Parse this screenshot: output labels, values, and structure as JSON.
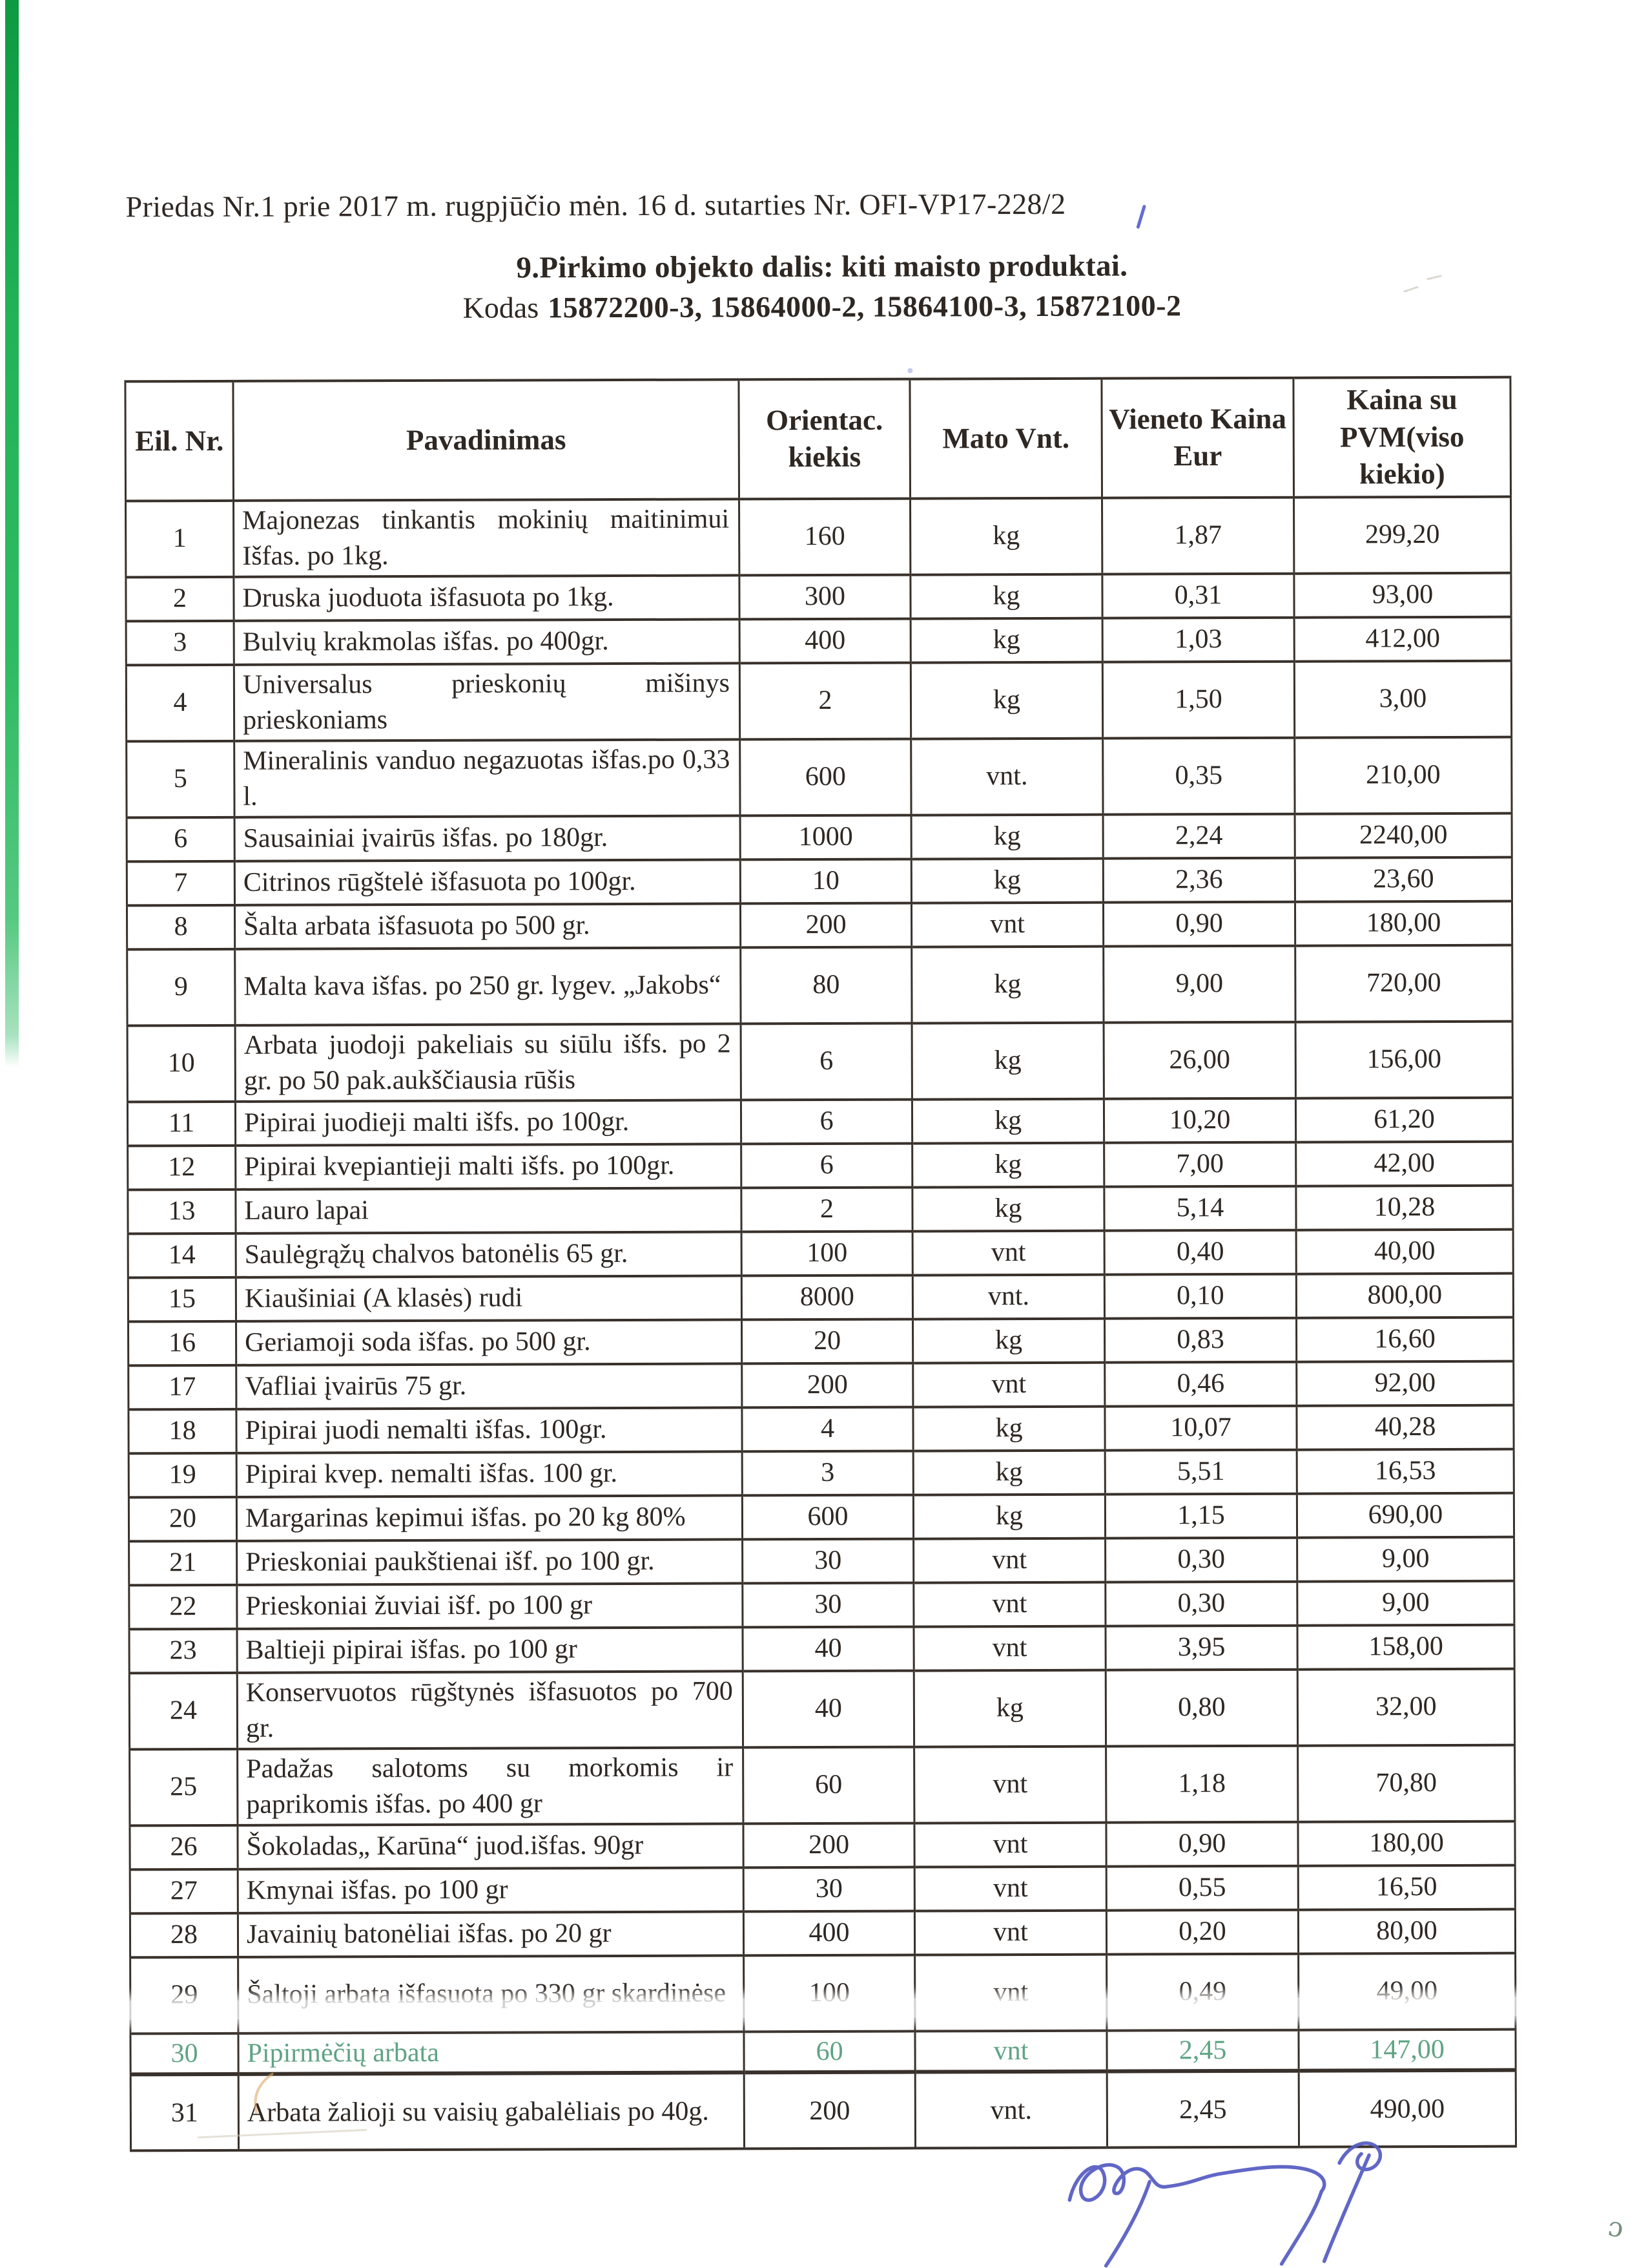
{
  "document": {
    "annex_line": "Priedas Nr.1 prie 2017 m. rugpjūčio mėn. 16 d. sutarties Nr. OFI-VP17-228/2",
    "title": "9.Pirkimo objekto dalis: kiti maisto produktai.",
    "code_label": "Kodas",
    "code_value": "15872200-3, 15864000-2, 15864100-3, 15872100-2"
  },
  "table": {
    "headers": {
      "nr": "Eil. Nr.",
      "name": "Pavadinimas",
      "qty": "Orientac.\nkiekis",
      "unit": "Mato Vnt.",
      "price": "Vieneto Kaina\nEur",
      "total": "Kaina su\nPVM(viso\nkiekio)"
    },
    "rows": [
      {
        "nr": "1",
        "h": "2",
        "name": "Majonezas tinkantis mokinių maitinimui Išfas. po 1kg.",
        "qty": "160",
        "unit": "kg",
        "price": "1,87",
        "total": "299,20"
      },
      {
        "nr": "2",
        "h": "1",
        "name": "Druska juoduota išfasuota po 1kg.",
        "qty": "300",
        "unit": "kg",
        "price": "0,31",
        "total": "93,00"
      },
      {
        "nr": "3",
        "h": "1",
        "name": "Bulvių krakmolas išfas. po 400gr.",
        "qty": "400",
        "unit": "kg",
        "price": "1,03",
        "total": "412,00"
      },
      {
        "nr": "4",
        "h": "2",
        "name": "Universalus prieskonių mišinys prieskoniams",
        "qty": "2",
        "unit": "kg",
        "price": "1,50",
        "total": "3,00"
      },
      {
        "nr": "5",
        "h": "2",
        "name": "Mineralinis vanduo negazuotas išfas.po 0,33 l.",
        "qty": "600",
        "unit": "vnt.",
        "price": "0,35",
        "total": "210,00"
      },
      {
        "nr": "6",
        "h": "1",
        "name": "Sausainiai įvairūs išfas. po 180gr.",
        "qty": "1000",
        "unit": "kg",
        "price": "2,24",
        "total": "2240,00"
      },
      {
        "nr": "7",
        "h": "1",
        "name": "Citrinos rūgštelė išfasuota po 100gr.",
        "qty": "10",
        "unit": "kg",
        "price": "2,36",
        "total": "23,60"
      },
      {
        "nr": "8",
        "h": "1",
        "name": "Šalta arbata išfasuota po 500 gr.",
        "qty": "200",
        "unit": "vnt",
        "price": "0,90",
        "total": "180,00"
      },
      {
        "nr": "9",
        "h": "2",
        "name": "Malta kava išfas. po 250 gr. lygev. „Jakobs“",
        "qty": "80",
        "unit": "kg",
        "price": "9,00",
        "total": "720,00"
      },
      {
        "nr": "10",
        "h": "2",
        "name": "Arbata juodoji pakeliais su siūlu išfs. po 2 gr. po 50 pak.aukščiausia rūšis",
        "qty": "6",
        "unit": "kg",
        "price": "26,00",
        "total": "156,00"
      },
      {
        "nr": "11",
        "h": "1",
        "name": "Pipirai juodieji malti išfs. po 100gr.",
        "qty": "6",
        "unit": "kg",
        "price": "10,20",
        "total": "61,20"
      },
      {
        "nr": "12",
        "h": "1",
        "name": "Pipirai kvepiantieji malti išfs. po 100gr.",
        "qty": "6",
        "unit": "kg",
        "price": "7,00",
        "total": "42,00"
      },
      {
        "nr": "13",
        "h": "1",
        "name": "Lauro lapai",
        "qty": "2",
        "unit": "kg",
        "price": "5,14",
        "total": "10,28"
      },
      {
        "nr": "14",
        "h": "1",
        "name": "Saulėgrąžų chalvos batonėlis 65 gr.",
        "qty": "100",
        "unit": "vnt",
        "price": "0,40",
        "total": "40,00"
      },
      {
        "nr": "15",
        "h": "1",
        "name": "Kiaušiniai (A klasės) rudi",
        "qty": "8000",
        "unit": "vnt.",
        "price": "0,10",
        "total": "800,00"
      },
      {
        "nr": "16",
        "h": "1",
        "name": "Geriamoji soda išfas. po 500 gr.",
        "qty": "20",
        "unit": "kg",
        "price": "0,83",
        "total": "16,60"
      },
      {
        "nr": "17",
        "h": "1",
        "name": "Vafliai įvairūs 75 gr.",
        "qty": "200",
        "unit": "vnt",
        "price": "0,46",
        "total": "92,00"
      },
      {
        "nr": "18",
        "h": "1",
        "name": "Pipirai juodi nemalti išfas. 100gr.",
        "qty": "4",
        "unit": "kg",
        "price": "10,07",
        "total": "40,28"
      },
      {
        "nr": "19",
        "h": "1",
        "name": "Pipirai kvep. nemalti išfas. 100 gr.",
        "qty": "3",
        "unit": "kg",
        "price": "5,51",
        "total": "16,53"
      },
      {
        "nr": "20",
        "h": "1",
        "name": "Margarinas kepimui išfas. po 20 kg 80%",
        "qty": "600",
        "unit": "kg",
        "price": "1,15",
        "total": "690,00"
      },
      {
        "nr": "21",
        "h": "1",
        "name": "Prieskoniai paukštienai išf. po 100 gr.",
        "qty": "30",
        "unit": "vnt",
        "price": "0,30",
        "total": "9,00"
      },
      {
        "nr": "22",
        "h": "1",
        "name": "Prieskoniai žuviai išf. po 100 gr",
        "qty": "30",
        "unit": "vnt",
        "price": "0,30",
        "total": "9,00"
      },
      {
        "nr": "23",
        "h": "1",
        "name": "Baltieji pipirai išfas. po 100 gr",
        "qty": "40",
        "unit": "vnt",
        "price": "3,95",
        "total": "158,00"
      },
      {
        "nr": "24",
        "h": "2",
        "name": "Konservuotos rūgštynės išfasuotos po 700 gr.",
        "qty": "40",
        "unit": "kg",
        "price": "0,80",
        "total": "32,00"
      },
      {
        "nr": "25",
        "h": "2",
        "name": "Padažas salotoms su morkomis ir paprikomis išfas. po 400 gr",
        "qty": "60",
        "unit": "vnt",
        "price": "1,18",
        "total": "70,80"
      },
      {
        "nr": "26",
        "h": "1",
        "name": "Šokoladas„ Karūna“ juod.išfas. 90gr",
        "qty": "200",
        "unit": "vnt",
        "price": "0,90",
        "total": "180,00"
      },
      {
        "nr": "27",
        "h": "1",
        "name": "Kmynai išfas. po 100 gr",
        "qty": "30",
        "unit": "vnt",
        "price": "0,55",
        "total": "16,50"
      },
      {
        "nr": "28",
        "h": "1",
        "name": "Javainių batonėliai išfas. po 20 gr",
        "qty": "400",
        "unit": "vnt",
        "price": "0,20",
        "total": "80,00"
      },
      {
        "nr": "29",
        "h": "2",
        "name": "Šaltoji arbata išfasuota po 330 gr skardinėse",
        "qty": "100",
        "unit": "vnt",
        "price": "0,49",
        "total": "49,00"
      },
      {
        "nr": "30",
        "h": "fold",
        "faded": true,
        "name": "Pipirmėčių arbata",
        "qty": "60",
        "unit": "vnt",
        "price": "2,45",
        "total": "147,00"
      },
      {
        "nr": "31",
        "h": "2",
        "name": "Arbata žalioji su vaisių gabalėliais po 40g.",
        "qty": "200",
        "unit": "vnt.",
        "price": "2,45",
        "total": "490,00"
      }
    ]
  },
  "marks": {
    "page_mark": "ɔ"
  },
  "colors": {
    "ink": "#2e2722",
    "border": "#38302a",
    "fade_green": "#5fa384",
    "strip_green": "#23b258",
    "signature_blue": "#565cc2"
  }
}
